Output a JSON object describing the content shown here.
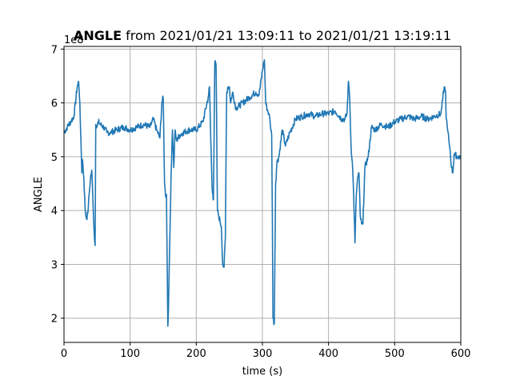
{
  "chart_data": {
    "type": "line",
    "title_bold": "ANGLE",
    "title_rest": " from 2021/01/21 13:09:11 to 2021/01/21 13:19:11",
    "xlabel": "time (s)",
    "ylabel": "ANGLE",
    "y_offset_label": "1e8",
    "xlim": [
      0,
      600
    ],
    "ylim": [
      1.55,
      7.05
    ],
    "x_ticks": [
      0,
      100,
      200,
      300,
      400,
      500,
      600
    ],
    "y_ticks": [
      2,
      3,
      4,
      5,
      6,
      7
    ],
    "grid": true,
    "color": "#1f77b4",
    "series": [
      {
        "x": [
          0,
          5,
          10,
          15,
          20,
          22,
          24,
          25,
          27,
          28,
          30,
          32,
          34,
          36,
          38,
          40,
          42,
          44,
          46,
          47,
          48,
          50,
          52,
          55,
          60,
          65,
          70,
          80,
          90,
          100,
          110,
          120,
          130,
          135,
          140,
          145,
          148,
          150,
          152,
          154,
          155,
          156,
          157,
          158,
          160,
          162,
          164,
          166,
          168,
          170,
          175,
          180,
          190,
          200,
          210,
          218,
          220,
          222,
          224,
          225,
          226,
          228,
          230,
          232,
          234,
          236,
          238,
          240,
          242,
          244,
          245,
          246,
          248,
          250,
          252,
          255,
          260,
          270,
          280,
          290,
          295,
          300,
          303,
          305,
          308,
          310,
          312,
          314,
          315,
          316,
          318,
          320,
          322,
          325,
          330,
          335,
          340,
          350,
          360,
          370,
          380,
          390,
          400,
          410,
          420,
          425,
          428,
          430,
          432,
          434,
          436,
          438,
          440,
          442,
          444,
          446,
          448,
          450,
          452,
          455,
          460,
          465,
          470,
          480,
          490,
          500,
          510,
          520,
          530,
          540,
          550,
          560,
          570,
          575,
          577,
          578,
          580,
          582,
          584,
          586,
          588,
          590,
          595,
          600
        ],
        "values": [
          5.45,
          5.55,
          5.65,
          5.75,
          6.3,
          6.4,
          6.0,
          5.5,
          4.7,
          4.95,
          4.6,
          4.0,
          3.85,
          3.95,
          4.3,
          4.6,
          4.75,
          4.1,
          3.5,
          3.35,
          5.6,
          5.55,
          5.65,
          5.6,
          5.55,
          5.45,
          5.45,
          5.5,
          5.55,
          5.5,
          5.55,
          5.6,
          5.55,
          5.7,
          5.5,
          5.35,
          6.0,
          6.1,
          4.5,
          4.25,
          4.3,
          3.0,
          1.85,
          2.2,
          3.5,
          4.7,
          5.5,
          4.8,
          5.5,
          5.3,
          5.4,
          5.45,
          5.5,
          5.5,
          5.65,
          6.1,
          6.3,
          5.3,
          4.4,
          4.3,
          4.2,
          6.75,
          6.7,
          4.0,
          3.9,
          3.8,
          3.7,
          3.0,
          2.95,
          3.5,
          4.9,
          6.2,
          6.3,
          6.3,
          6.0,
          6.2,
          5.9,
          6.0,
          6.1,
          6.2,
          6.15,
          6.6,
          6.8,
          6.0,
          5.85,
          5.8,
          5.6,
          5.4,
          4.0,
          2.0,
          1.9,
          4.5,
          4.9,
          5.0,
          5.5,
          5.2,
          5.4,
          5.7,
          5.75,
          5.8,
          5.75,
          5.8,
          5.8,
          5.85,
          5.7,
          5.7,
          5.8,
          6.4,
          6.1,
          5.2,
          4.9,
          4.3,
          3.4,
          4.3,
          4.6,
          4.7,
          3.9,
          3.75,
          3.75,
          4.8,
          5.0,
          5.55,
          5.5,
          5.6,
          5.55,
          5.65,
          5.7,
          5.75,
          5.7,
          5.75,
          5.7,
          5.75,
          5.8,
          6.3,
          6.2,
          5.7,
          5.5,
          5.3,
          5.1,
          4.8,
          4.7,
          5.05,
          5.0,
          5.0
        ]
      }
    ]
  }
}
